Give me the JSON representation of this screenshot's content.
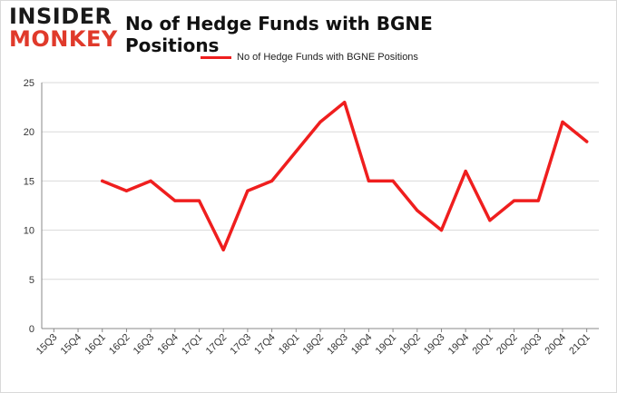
{
  "brand": {
    "logo_top": "INSIDER",
    "logo_bottom": "MONKEY"
  },
  "colors": {
    "series": "#ef1e1e",
    "grid": "#d9d9d9",
    "axis": "#888888",
    "brand_accent": "#e03a2b"
  },
  "chart_data": {
    "type": "line",
    "title": "No of Hedge Funds with BGNE Positions",
    "xlabel": "",
    "ylabel": "",
    "ylim": [
      0,
      25
    ],
    "yticks": [
      0,
      5,
      10,
      15,
      20,
      25
    ],
    "grid": "horizontal",
    "legend": "top-center",
    "categories": [
      "15Q3",
      "15Q4",
      "16Q1",
      "16Q2",
      "16Q3",
      "16Q4",
      "17Q1",
      "17Q2",
      "17Q3",
      "17Q4",
      "18Q1",
      "18Q2",
      "18Q3",
      "18Q4",
      "19Q1",
      "19Q2",
      "19Q3",
      "19Q4",
      "20Q1",
      "20Q2",
      "20Q3",
      "20Q4",
      "21Q1"
    ],
    "series": [
      {
        "name": "No of Hedge Funds with BGNE Positions",
        "values": [
          null,
          null,
          15,
          14,
          15,
          13,
          13,
          8,
          14,
          15,
          18,
          21,
          23,
          15,
          15,
          12,
          10,
          16,
          11,
          13,
          13,
          21,
          19
        ]
      }
    ]
  }
}
